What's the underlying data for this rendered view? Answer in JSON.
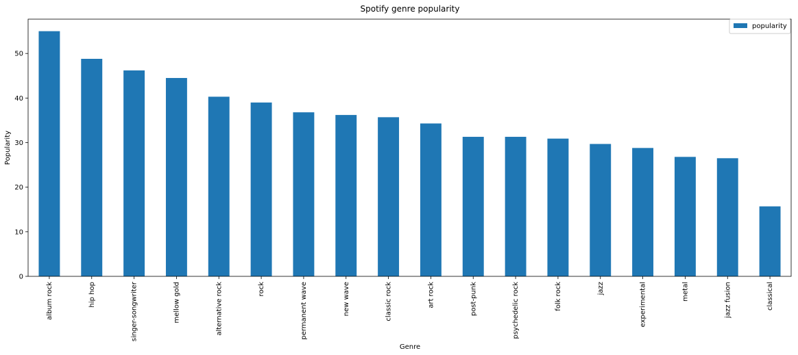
{
  "chart_data": {
    "type": "bar",
    "title": "Spotify genre popularity",
    "xlabel": "Genre",
    "ylabel": "Popularity",
    "categories": [
      "album rock",
      "hip hop",
      "singer-songwriter",
      "mellow gold",
      "alternative rock",
      "rock",
      "permanent wave",
      "new wave",
      "classic rock",
      "art rock",
      "post-punk",
      "psychedelic rock",
      "folk rock",
      "jazz",
      "experimental",
      "metal",
      "jazz fusion",
      "classical"
    ],
    "series": [
      {
        "name": "popularity",
        "color": "#1f77b4",
        "values": [
          55.0,
          48.8,
          46.2,
          44.5,
          40.3,
          39.0,
          36.8,
          36.2,
          35.7,
          34.3,
          31.3,
          31.3,
          30.9,
          29.7,
          28.8,
          26.8,
          26.5,
          15.7
        ]
      }
    ],
    "ylim": [
      0,
      57.7
    ],
    "yticks": [
      0,
      10,
      20,
      30,
      40,
      50
    ],
    "grid": false,
    "legend_position": "top-right"
  }
}
